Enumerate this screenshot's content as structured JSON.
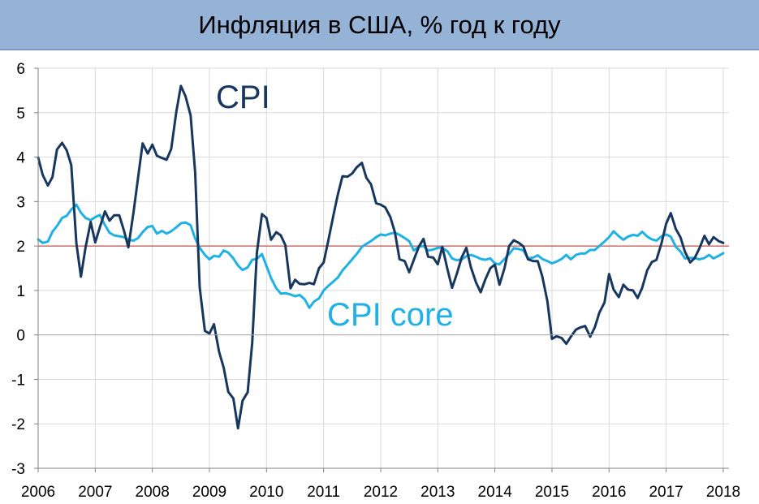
{
  "chart_data": {
    "type": "line",
    "title": "Инфляция в США, % год к году",
    "xlabel": "",
    "ylabel": "",
    "x_ticks": [
      "2006",
      "2007",
      "2008",
      "2009",
      "2010",
      "2011",
      "2012",
      "2013",
      "2014",
      "2015",
      "2016",
      "2017",
      "2018"
    ],
    "y_ticks": [
      "6",
      "5",
      "4",
      "3",
      "2",
      "1",
      "0",
      "-1",
      "-2",
      "-3"
    ],
    "ylim": [
      -3,
      6
    ],
    "xlim": [
      2006.0,
      2018.1
    ],
    "grid": true,
    "reference_line": {
      "value": 2,
      "color": "#c0504d"
    },
    "series": [
      {
        "name": "CPI",
        "color": "#17375e",
        "x": [
          2006.0,
          2006.08,
          2006.17,
          2006.25,
          2006.33,
          2006.42,
          2006.5,
          2006.58,
          2006.67,
          2006.75,
          2006.83,
          2006.92,
          2007.0,
          2007.08,
          2007.17,
          2007.25,
          2007.33,
          2007.42,
          2007.5,
          2007.58,
          2007.67,
          2007.75,
          2007.83,
          2007.92,
          2008.0,
          2008.08,
          2008.17,
          2008.25,
          2008.33,
          2008.42,
          2008.5,
          2008.58,
          2008.67,
          2008.75,
          2008.83,
          2008.92,
          2009.0,
          2009.08,
          2009.17,
          2009.25,
          2009.33,
          2009.42,
          2009.5,
          2009.58,
          2009.67,
          2009.75,
          2009.83,
          2009.92,
          2010.0,
          2010.08,
          2010.17,
          2010.25,
          2010.33,
          2010.42,
          2010.5,
          2010.58,
          2010.67,
          2010.75,
          2010.83,
          2010.92,
          2011.0,
          2011.08,
          2011.17,
          2011.25,
          2011.33,
          2011.42,
          2011.5,
          2011.58,
          2011.67,
          2011.75,
          2011.83,
          2011.92,
          2012.0,
          2012.08,
          2012.17,
          2012.25,
          2012.33,
          2012.42,
          2012.5,
          2012.58,
          2012.67,
          2012.75,
          2012.83,
          2012.92,
          2013.0,
          2013.08,
          2013.17,
          2013.25,
          2013.33,
          2013.42,
          2013.5,
          2013.58,
          2013.67,
          2013.75,
          2013.83,
          2013.92,
          2014.0,
          2014.08,
          2014.17,
          2014.25,
          2014.33,
          2014.42,
          2014.5,
          2014.58,
          2014.67,
          2014.75,
          2014.83,
          2014.92,
          2015.0,
          2015.08,
          2015.17,
          2015.25,
          2015.33,
          2015.42,
          2015.5,
          2015.58,
          2015.67,
          2015.75,
          2015.83,
          2015.92,
          2016.0,
          2016.08,
          2016.17,
          2016.25,
          2016.33,
          2016.42,
          2016.5,
          2016.58,
          2016.67,
          2016.75,
          2016.83,
          2016.92,
          2017.0,
          2017.08,
          2017.17,
          2017.25,
          2017.33,
          2017.42,
          2017.5,
          2017.58,
          2017.67,
          2017.75,
          2017.83,
          2017.92,
          2018.0
        ],
        "values": [
          3.99,
          3.6,
          3.36,
          3.55,
          4.17,
          4.32,
          4.15,
          3.82,
          2.06,
          1.31,
          1.97,
          2.54,
          2.08,
          2.42,
          2.78,
          2.57,
          2.69,
          2.69,
          2.36,
          1.97,
          2.76,
          3.54,
          4.31,
          4.08,
          4.28,
          4.03,
          3.98,
          3.94,
          4.18,
          5.02,
          5.6,
          5.37,
          4.94,
          3.66,
          1.07,
          0.09,
          0.03,
          0.24,
          -0.38,
          -0.74,
          -1.28,
          -1.43,
          -2.1,
          -1.48,
          -1.29,
          -0.18,
          1.84,
          2.72,
          2.63,
          2.14,
          2.31,
          2.24,
          2.02,
          1.05,
          1.24,
          1.15,
          1.14,
          1.17,
          1.14,
          1.5,
          1.63,
          2.11,
          2.68,
          3.16,
          3.57,
          3.56,
          3.63,
          3.77,
          3.87,
          3.53,
          3.39,
          2.96,
          2.93,
          2.87,
          2.65,
          2.3,
          1.7,
          1.66,
          1.41,
          1.69,
          1.99,
          2.16,
          1.76,
          1.74,
          1.59,
          1.98,
          1.47,
          1.06,
          1.36,
          1.75,
          1.96,
          1.52,
          1.18,
          0.96,
          1.24,
          1.5,
          1.58,
          1.13,
          1.51,
          2.0,
          2.13,
          2.07,
          1.99,
          1.7,
          1.66,
          1.66,
          1.32,
          0.76,
          -0.09,
          -0.03,
          -0.07,
          -0.2,
          -0.04,
          0.12,
          0.17,
          0.2,
          -0.04,
          0.17,
          0.5,
          0.73,
          1.37,
          1.02,
          0.85,
          1.13,
          1.02,
          1.0,
          0.83,
          1.06,
          1.46,
          1.64,
          1.69,
          2.07,
          2.5,
          2.74,
          2.38,
          2.2,
          1.87,
          1.63,
          1.73,
          1.94,
          2.23,
          2.04,
          2.2,
          2.11,
          2.07
        ]
      },
      {
        "name": "CPI core",
        "color": "#1fb1e6",
        "x": [
          2006.0,
          2006.08,
          2006.17,
          2006.25,
          2006.33,
          2006.42,
          2006.5,
          2006.58,
          2006.67,
          2006.75,
          2006.83,
          2006.92,
          2007.0,
          2007.08,
          2007.17,
          2007.25,
          2007.33,
          2007.42,
          2007.5,
          2007.58,
          2007.67,
          2007.75,
          2007.83,
          2007.92,
          2008.0,
          2008.08,
          2008.17,
          2008.25,
          2008.33,
          2008.42,
          2008.5,
          2008.58,
          2008.67,
          2008.75,
          2008.83,
          2008.92,
          2009.0,
          2009.08,
          2009.17,
          2009.25,
          2009.33,
          2009.42,
          2009.5,
          2009.58,
          2009.67,
          2009.75,
          2009.83,
          2009.92,
          2010.0,
          2010.08,
          2010.17,
          2010.25,
          2010.33,
          2010.42,
          2010.5,
          2010.58,
          2010.67,
          2010.75,
          2010.83,
          2010.92,
          2011.0,
          2011.08,
          2011.17,
          2011.25,
          2011.33,
          2011.42,
          2011.5,
          2011.58,
          2011.67,
          2011.75,
          2011.83,
          2011.92,
          2012.0,
          2012.08,
          2012.17,
          2012.25,
          2012.33,
          2012.42,
          2012.5,
          2012.58,
          2012.67,
          2012.75,
          2012.83,
          2012.92,
          2013.0,
          2013.08,
          2013.17,
          2013.25,
          2013.33,
          2013.42,
          2013.5,
          2013.58,
          2013.67,
          2013.75,
          2013.83,
          2013.92,
          2014.0,
          2014.08,
          2014.17,
          2014.25,
          2014.33,
          2014.42,
          2014.5,
          2014.58,
          2014.67,
          2014.75,
          2014.83,
          2014.92,
          2015.0,
          2015.08,
          2015.17,
          2015.25,
          2015.33,
          2015.42,
          2015.5,
          2015.58,
          2015.67,
          2015.75,
          2015.83,
          2015.92,
          2016.0,
          2016.08,
          2016.17,
          2016.25,
          2016.33,
          2016.42,
          2016.5,
          2016.58,
          2016.67,
          2016.75,
          2016.83,
          2016.92,
          2017.0,
          2017.08,
          2017.17,
          2017.25,
          2017.33,
          2017.42,
          2017.5,
          2017.58,
          2017.67,
          2017.75,
          2017.83,
          2017.92,
          2018.0
        ],
        "values": [
          2.15,
          2.07,
          2.1,
          2.32,
          2.45,
          2.63,
          2.68,
          2.82,
          2.93,
          2.75,
          2.63,
          2.58,
          2.65,
          2.7,
          2.47,
          2.3,
          2.24,
          2.22,
          2.2,
          2.14,
          2.12,
          2.18,
          2.31,
          2.43,
          2.45,
          2.28,
          2.34,
          2.28,
          2.33,
          2.42,
          2.51,
          2.53,
          2.47,
          2.17,
          1.96,
          1.8,
          1.7,
          1.78,
          1.76,
          1.9,
          1.85,
          1.72,
          1.56,
          1.46,
          1.52,
          1.69,
          1.71,
          1.82,
          1.55,
          1.28,
          1.05,
          0.93,
          0.94,
          0.91,
          0.87,
          0.9,
          0.8,
          0.61,
          0.75,
          0.82,
          1.0,
          1.1,
          1.2,
          1.29,
          1.45,
          1.58,
          1.7,
          1.82,
          1.98,
          2.05,
          2.11,
          2.2,
          2.26,
          2.24,
          2.28,
          2.3,
          2.25,
          2.18,
          2.11,
          1.9,
          1.99,
          2.0,
          1.9,
          1.92,
          1.96,
          1.96,
          1.88,
          1.72,
          1.68,
          1.7,
          1.77,
          1.8,
          1.76,
          1.71,
          1.69,
          1.72,
          1.61,
          1.59,
          1.71,
          1.82,
          1.95,
          1.93,
          1.9,
          1.72,
          1.74,
          1.79,
          1.71,
          1.66,
          1.61,
          1.65,
          1.71,
          1.8,
          1.7,
          1.8,
          1.83,
          1.83,
          1.91,
          1.91,
          2.0,
          2.1,
          2.2,
          2.33,
          2.22,
          2.14,
          2.21,
          2.25,
          2.23,
          2.32,
          2.21,
          2.15,
          2.12,
          2.22,
          2.26,
          2.21,
          1.98,
          1.88,
          1.72,
          1.73,
          1.73,
          1.7,
          1.73,
          1.8,
          1.72,
          1.78,
          1.84
        ]
      }
    ],
    "annotations": [
      {
        "text": "CPI",
        "series": "CPI"
      },
      {
        "text": "CPI core",
        "series": "CPI core"
      }
    ]
  }
}
